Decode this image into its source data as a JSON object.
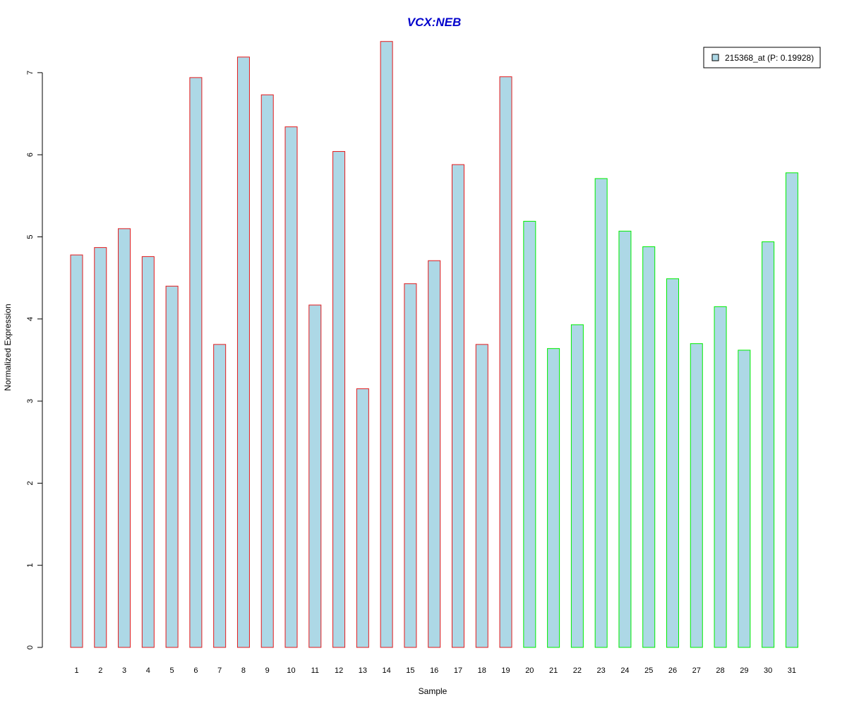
{
  "chart_data": {
    "type": "bar",
    "title": "VCX:NEB",
    "xlabel": "Sample",
    "ylabel": "Normalized Expression",
    "categories": [
      "1",
      "2",
      "3",
      "4",
      "5",
      "6",
      "7",
      "8",
      "9",
      "10",
      "11",
      "12",
      "13",
      "14",
      "15",
      "16",
      "17",
      "18",
      "19",
      "20",
      "21",
      "22",
      "23",
      "24",
      "25",
      "26",
      "27",
      "28",
      "29",
      "30",
      "31"
    ],
    "series": [
      {
        "name": "215368_at (P: 0.19928)",
        "values": [
          4.78,
          4.87,
          5.1,
          4.76,
          4.4,
          6.94,
          3.69,
          7.19,
          6.73,
          6.34,
          4.17,
          6.04,
          3.15,
          7.38,
          4.43,
          4.71,
          5.88,
          3.69,
          6.95,
          5.19,
          3.64,
          3.93,
          5.71,
          5.07,
          4.88,
          4.49,
          3.7,
          4.15,
          3.62,
          4.94,
          5.78
        ]
      }
    ],
    "groups": [
      {
        "border_color": "#e41a1c",
        "samples": [
          1,
          19
        ]
      },
      {
        "border_color": "#00ee00",
        "samples": [
          20,
          31
        ]
      }
    ],
    "bar_fill": "#add8e6",
    "title_color": "#0000cc",
    "ylim": [
      0,
      7.4
    ],
    "yticks": [
      0,
      1,
      2,
      3,
      4,
      5,
      6,
      7
    ],
    "legend_position": "top-right",
    "grid": false
  }
}
